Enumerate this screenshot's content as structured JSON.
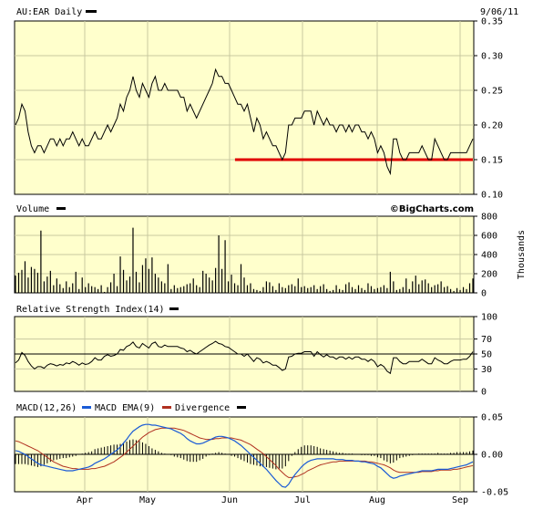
{
  "date": "9/06/11",
  "watermark": "©BigCharts.com",
  "months": [
    "Apr",
    "May",
    "Jun",
    "Jul",
    "Aug",
    "Sep"
  ],
  "colors": {
    "panel_bg": "#ffffcc",
    "grid": "#c8c8a0",
    "price": "#000000",
    "support": "#e00000",
    "macd": "#1a5bd6",
    "ema": "#b03020",
    "bars": "#000000"
  },
  "chart_data": [
    {
      "type": "line",
      "title": "AU:EAR Daily",
      "ylim": [
        0.1,
        0.35
      ],
      "yticks": [
        "0.35",
        "0.30",
        "0.25",
        "0.20",
        "0.15",
        "0.10"
      ],
      "series": [
        {
          "values": [
            0.2,
            0.21,
            0.23,
            0.22,
            0.19,
            0.17,
            0.16,
            0.17,
            0.17,
            0.16,
            0.17,
            0.18,
            0.18,
            0.17,
            0.18,
            0.17,
            0.18,
            0.18,
            0.19,
            0.18,
            0.17,
            0.18,
            0.17,
            0.17,
            0.18,
            0.19,
            0.18,
            0.18,
            0.19,
            0.2,
            0.19,
            0.2,
            0.21,
            0.23,
            0.22,
            0.24,
            0.25,
            0.27,
            0.25,
            0.24,
            0.26,
            0.25,
            0.24,
            0.26,
            0.27,
            0.25,
            0.25,
            0.26,
            0.25,
            0.25,
            0.25,
            0.25,
            0.24,
            0.24,
            0.22,
            0.23,
            0.22,
            0.21,
            0.22,
            0.23,
            0.24,
            0.25,
            0.26,
            0.28,
            0.27,
            0.27,
            0.26,
            0.26,
            0.25,
            0.24,
            0.23,
            0.23,
            0.22,
            0.23,
            0.21,
            0.19,
            0.21,
            0.2,
            0.18,
            0.19,
            0.18,
            0.17,
            0.17,
            0.16,
            0.15,
            0.16,
            0.2,
            0.2,
            0.21,
            0.21,
            0.21,
            0.22,
            0.22,
            0.22,
            0.2,
            0.22,
            0.21,
            0.2,
            0.21,
            0.2,
            0.2,
            0.19,
            0.2,
            0.2,
            0.19,
            0.2,
            0.19,
            0.2,
            0.2,
            0.19,
            0.19,
            0.18,
            0.19,
            0.18,
            0.16,
            0.17,
            0.16,
            0.14,
            0.13,
            0.18,
            0.18,
            0.16,
            0.15,
            0.15,
            0.16,
            0.16,
            0.16,
            0.16,
            0.17,
            0.16,
            0.15,
            0.15,
            0.18,
            0.17,
            0.16,
            0.15,
            0.15,
            0.16,
            0.16,
            0.16,
            0.16,
            0.16,
            0.16,
            0.17,
            0.18
          ]
        }
      ],
      "reference_lines": [
        {
          "value": 0.15,
          "x_start_fraction": 0.48
        }
      ]
    },
    {
      "type": "bar",
      "title": "Volume",
      "ylabel": "Thousands",
      "ylim": [
        0,
        800
      ],
      "yticks": [
        "800",
        "600",
        "400",
        "200",
        "0"
      ],
      "values": [
        180,
        210,
        240,
        330,
        160,
        270,
        250,
        210,
        650,
        120,
        170,
        230,
        80,
        150,
        90,
        50,
        120,
        60,
        100,
        220,
        40,
        160,
        60,
        100,
        70,
        60,
        40,
        80,
        10,
        60,
        110,
        200,
        70,
        380,
        240,
        130,
        170,
        680,
        220,
        110,
        290,
        360,
        250,
        370,
        200,
        160,
        120,
        100,
        300,
        40,
        80,
        50,
        60,
        70,
        90,
        100,
        150,
        80,
        60,
        230,
        200,
        160,
        130,
        260,
        600,
        250,
        550,
        120,
        190,
        100,
        80,
        300,
        160,
        80,
        100,
        40,
        30,
        20,
        60,
        120,
        110,
        70,
        30,
        100,
        60,
        50,
        80,
        90,
        70,
        150,
        60,
        70,
        50,
        60,
        80,
        40,
        70,
        90,
        40,
        20,
        30,
        80,
        40,
        30,
        90,
        110,
        60,
        40,
        80,
        50,
        30,
        100,
        70,
        40,
        50,
        60,
        80,
        50,
        220,
        120,
        30,
        40,
        60,
        150,
        40,
        120,
        180,
        90,
        130,
        140,
        100,
        60,
        80,
        90,
        120,
        60,
        70,
        40,
        20,
        50,
        30,
        60,
        40,
        100,
        150
      ]
    },
    {
      "type": "line",
      "title": "Relative Strength Index(14)",
      "ylim": [
        0,
        100
      ],
      "yticks": [
        "100",
        "70",
        "50",
        "30",
        "0"
      ],
      "reference_value": 50,
      "series": [
        {
          "values": [
            38,
            42,
            52,
            48,
            40,
            34,
            30,
            33,
            33,
            31,
            35,
            37,
            36,
            34,
            36,
            35,
            38,
            37,
            40,
            38,
            35,
            38,
            36,
            37,
            40,
            45,
            42,
            42,
            47,
            49,
            47,
            48,
            50,
            56,
            55,
            60,
            62,
            66,
            60,
            58,
            64,
            61,
            58,
            64,
            66,
            60,
            59,
            62,
            60,
            60,
            60,
            60,
            58,
            57,
            53,
            55,
            52,
            50,
            53,
            56,
            59,
            62,
            64,
            67,
            64,
            63,
            60,
            59,
            56,
            53,
            50,
            50,
            47,
            50,
            45,
            40,
            45,
            43,
            38,
            40,
            38,
            35,
            35,
            32,
            28,
            30,
            46,
            47,
            50,
            51,
            51,
            53,
            53,
            53,
            47,
            53,
            49,
            46,
            49,
            46,
            46,
            43,
            46,
            46,
            43,
            46,
            43,
            46,
            46,
            43,
            43,
            40,
            43,
            40,
            33,
            36,
            33,
            27,
            24,
            45,
            45,
            40,
            37,
            37,
            40,
            40,
            40,
            40,
            43,
            40,
            37,
            37,
            45,
            42,
            40,
            37,
            37,
            40,
            42,
            42,
            42,
            43,
            43,
            47,
            53
          ]
        }
      ]
    },
    {
      "type": "line",
      "title": "MACD(12,26)",
      "ylim": [
        -0.05,
        0.05
      ],
      "yticks": [
        "0.05",
        "0.00",
        "-0.05"
      ],
      "series": [
        {
          "name": "MACD(12,26)",
          "values": [
            0.005,
            0.004,
            0.002,
            0.0,
            -0.003,
            -0.006,
            -0.009,
            -0.012,
            -0.014,
            -0.015,
            -0.016,
            -0.017,
            -0.018,
            -0.019,
            -0.02,
            -0.021,
            -0.022,
            -0.022,
            -0.022,
            -0.021,
            -0.02,
            -0.019,
            -0.018,
            -0.017,
            -0.015,
            -0.012,
            -0.01,
            -0.008,
            -0.006,
            -0.003,
            0.0,
            0.003,
            0.006,
            0.01,
            0.015,
            0.02,
            0.026,
            0.031,
            0.034,
            0.037,
            0.039,
            0.04,
            0.04,
            0.039,
            0.039,
            0.038,
            0.037,
            0.036,
            0.035,
            0.034,
            0.032,
            0.03,
            0.028,
            0.025,
            0.021,
            0.018,
            0.016,
            0.014,
            0.014,
            0.015,
            0.017,
            0.019,
            0.021,
            0.023,
            0.024,
            0.024,
            0.023,
            0.022,
            0.02,
            0.018,
            0.015,
            0.012,
            0.008,
            0.004,
            0.0,
            -0.004,
            -0.008,
            -0.012,
            -0.016,
            -0.02,
            -0.025,
            -0.03,
            -0.035,
            -0.039,
            -0.043,
            -0.044,
            -0.04,
            -0.033,
            -0.027,
            -0.022,
            -0.017,
            -0.013,
            -0.01,
            -0.008,
            -0.007,
            -0.006,
            -0.006,
            -0.006,
            -0.006,
            -0.006,
            -0.006,
            -0.007,
            -0.007,
            -0.007,
            -0.008,
            -0.008,
            -0.008,
            -0.009,
            -0.009,
            -0.01,
            -0.01,
            -0.011,
            -0.012,
            -0.013,
            -0.016,
            -0.018,
            -0.022,
            -0.026,
            -0.03,
            -0.032,
            -0.031,
            -0.029,
            -0.028,
            -0.027,
            -0.026,
            -0.025,
            -0.024,
            -0.023,
            -0.022,
            -0.022,
            -0.022,
            -0.022,
            -0.021,
            -0.02,
            -0.02,
            -0.02,
            -0.02,
            -0.019,
            -0.018,
            -0.017,
            -0.016,
            -0.015,
            -0.014,
            -0.012,
            -0.01
          ]
        },
        {
          "name": "MACD EMA(9)",
          "values": [
            0.018,
            0.017,
            0.015,
            0.013,
            0.011,
            0.009,
            0.007,
            0.005,
            0.002,
            -0.001,
            -0.004,
            -0.007,
            -0.01,
            -0.012,
            -0.014,
            -0.016,
            -0.017,
            -0.018,
            -0.019,
            -0.019,
            -0.02,
            -0.02,
            -0.02,
            -0.02,
            -0.019,
            -0.019,
            -0.018,
            -0.017,
            -0.016,
            -0.014,
            -0.012,
            -0.01,
            -0.007,
            -0.004,
            -0.001,
            0.003,
            0.007,
            0.011,
            0.015,
            0.019,
            0.023,
            0.026,
            0.029,
            0.031,
            0.033,
            0.034,
            0.035,
            0.035,
            0.035,
            0.035,
            0.035,
            0.034,
            0.033,
            0.032,
            0.03,
            0.028,
            0.026,
            0.024,
            0.022,
            0.021,
            0.02,
            0.02,
            0.02,
            0.021,
            0.021,
            0.022,
            0.022,
            0.022,
            0.022,
            0.021,
            0.02,
            0.019,
            0.017,
            0.015,
            0.013,
            0.01,
            0.007,
            0.004,
            0.001,
            -0.003,
            -0.007,
            -0.011,
            -0.015,
            -0.02,
            -0.024,
            -0.028,
            -0.031,
            -0.031,
            -0.03,
            -0.029,
            -0.027,
            -0.025,
            -0.022,
            -0.02,
            -0.018,
            -0.016,
            -0.014,
            -0.013,
            -0.012,
            -0.011,
            -0.01,
            -0.01,
            -0.009,
            -0.009,
            -0.009,
            -0.009,
            -0.009,
            -0.009,
            -0.009,
            -0.009,
            -0.009,
            -0.01,
            -0.01,
            -0.011,
            -0.012,
            -0.013,
            -0.014,
            -0.016,
            -0.018,
            -0.021,
            -0.023,
            -0.024,
            -0.024,
            -0.024,
            -0.024,
            -0.024,
            -0.024,
            -0.024,
            -0.023,
            -0.023,
            -0.023,
            -0.023,
            -0.022,
            -0.022,
            -0.021,
            -0.021,
            -0.021,
            -0.021,
            -0.02,
            -0.02,
            -0.019,
            -0.018,
            -0.017,
            -0.016,
            -0.015
          ]
        },
        {
          "name": "Divergence"
        }
      ]
    }
  ]
}
